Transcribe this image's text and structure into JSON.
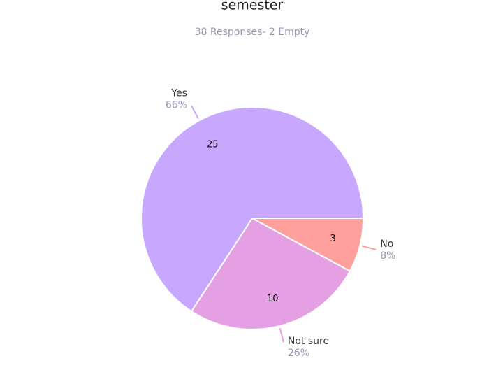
{
  "chart_data": {
    "type": "pie",
    "title": "semester",
    "subtitle": "38 Responses- 2 Empty",
    "categories": [
      "No",
      "Not sure",
      "Yes"
    ],
    "values": [
      3,
      10,
      25
    ],
    "percent_labels": [
      "8%",
      "26%",
      "66%"
    ],
    "colors": [
      "#ffa09d",
      "#e4a0e3",
      "#c8a8ff"
    ]
  }
}
